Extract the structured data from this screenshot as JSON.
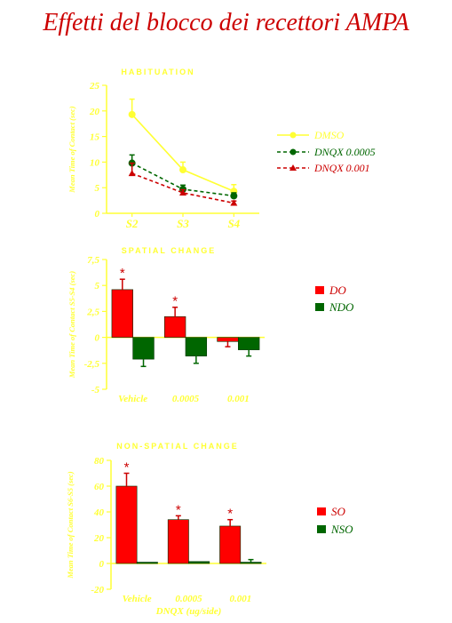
{
  "slide": {
    "title": "Effetti del blocco dei recettori AMPA"
  },
  "colors": {
    "axis": "#ffff33",
    "dmso": "#ffff33",
    "dnqx_low": "#006600",
    "dnqx_high": "#cc0000",
    "red": "#ff0000",
    "green": "#006600",
    "asterisk": "#cc0000",
    "title_red": "#cc0000"
  },
  "chart_data": [
    {
      "type": "line",
      "title": "HABITUATION",
      "ylabel": "Mean Time of Contact (sec)",
      "xlabel": "",
      "categories": [
        "S2",
        "S3",
        "S4"
      ],
      "ylim": [
        0,
        25
      ],
      "yticks": [
        0,
        5,
        10,
        15,
        20,
        25
      ],
      "grid": false,
      "legend": "right",
      "series": [
        {
          "name": "DMSO",
          "values": [
            19.3,
            8.5,
            4.3
          ],
          "errors": [
            3.0,
            1.5,
            1.3
          ],
          "color": "#ffff33",
          "marker": "circle",
          "dash": "solid",
          "legend_color": "#ffff33"
        },
        {
          "name": "DNQX 0.0005",
          "values": [
            9.8,
            4.7,
            3.4
          ],
          "errors": [
            1.6,
            0.8,
            0.6
          ],
          "color": "#006600",
          "marker": "circle",
          "dash": "dashed",
          "legend_color": "#006600"
        },
        {
          "name": "DNQX 0.001",
          "values": [
            7.8,
            4.0,
            2.0
          ],
          "errors": [
            2.0,
            0.6,
            0.4
          ],
          "color": "#cc0000",
          "marker": "triangle",
          "dash": "dashed",
          "legend_color": "#cc0000"
        }
      ]
    },
    {
      "type": "bar",
      "title": "SPATIAL CHANGE",
      "ylabel": "Mean Time of Contact S5-S4 (sec)",
      "xlabel": "",
      "categories": [
        "Vehicle",
        "0.0005",
        "0.001"
      ],
      "ylim": [
        -5,
        7.5
      ],
      "yticks": [
        -5,
        -2.5,
        0,
        2.5,
        5,
        7.5
      ],
      "ytick_labels": [
        "-5",
        "-2,5",
        "0",
        "2,5",
        "5",
        "7,5"
      ],
      "grid": false,
      "legend": "right",
      "series": [
        {
          "name": "DO",
          "values": [
            4.6,
            2.0,
            -0.4
          ],
          "errors": [
            1.0,
            0.9,
            0.5
          ],
          "color": "#ff0000"
        },
        {
          "name": "NDO",
          "values": [
            -2.1,
            -1.8,
            -1.2
          ],
          "errors": [
            0.7,
            0.7,
            0.6
          ],
          "color": "#006600"
        }
      ],
      "annotations": [
        {
          "text": "*",
          "series": 0,
          "category": 0
        },
        {
          "text": "*",
          "series": 0,
          "category": 1
        }
      ]
    },
    {
      "type": "bar",
      "title": "NON-SPATIAL CHANGE",
      "ylabel": "Mean Time of Contact S6-S5 (sec)",
      "xlabel": "DNQX (ug/side)",
      "categories": [
        "Vehicle",
        "0.0005",
        "0.001"
      ],
      "ylim": [
        -20,
        80
      ],
      "yticks": [
        -20,
        0,
        20,
        40,
        60,
        80
      ],
      "grid": false,
      "legend": "right",
      "series": [
        {
          "name": "SO",
          "values": [
            60,
            34,
            29
          ],
          "errors": [
            10,
            3,
            5
          ],
          "color": "#ff0000"
        },
        {
          "name": "NSO",
          "values": [
            1,
            1.5,
            1
          ],
          "errors": [
            0,
            0,
            2
          ],
          "color": "#006600"
        }
      ],
      "annotations": [
        {
          "text": "*",
          "series": 0,
          "category": 0
        },
        {
          "text": "*",
          "series": 0,
          "category": 1
        },
        {
          "text": "*",
          "series": 0,
          "category": 2
        }
      ]
    }
  ]
}
